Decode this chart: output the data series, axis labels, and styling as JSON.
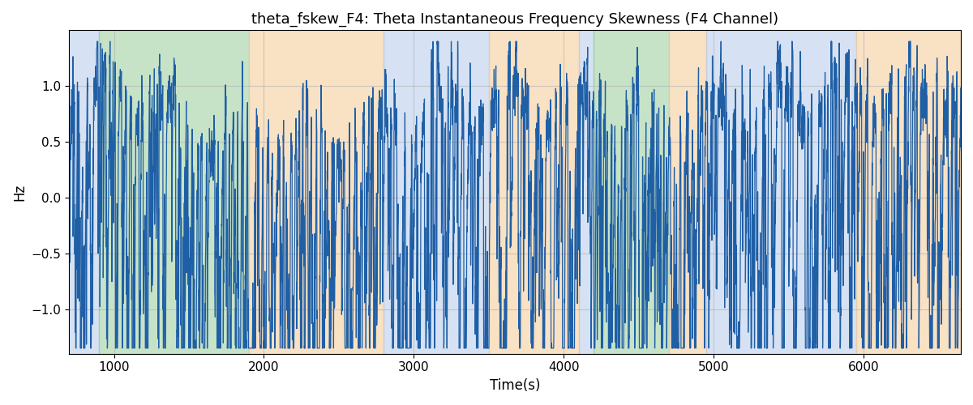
{
  "title": "theta_fskew_F4: Theta Instantaneous Frequency Skewness (F4 Channel)",
  "xlabel": "Time(s)",
  "ylabel": "Hz",
  "xlim": [
    700,
    6650
  ],
  "ylim": [
    -1.4,
    1.5
  ],
  "yticks": [
    -1.0,
    -0.5,
    0.0,
    0.5,
    1.0
  ],
  "xticks": [
    1000,
    2000,
    3000,
    4000,
    5000,
    6000
  ],
  "line_color": "#1f5fa6",
  "line_width": 0.9,
  "bg_regions": [
    {
      "xstart": 700,
      "xend": 900,
      "color": "#aec6e8",
      "alpha": 0.5
    },
    {
      "xstart": 900,
      "xend": 1900,
      "color": "#90c990",
      "alpha": 0.5
    },
    {
      "xstart": 1900,
      "xend": 2800,
      "color": "#f5c995",
      "alpha": 0.55
    },
    {
      "xstart": 2800,
      "xend": 3500,
      "color": "#aec6e8",
      "alpha": 0.5
    },
    {
      "xstart": 3500,
      "xend": 4100,
      "color": "#f5c995",
      "alpha": 0.55
    },
    {
      "xstart": 4100,
      "xend": 4200,
      "color": "#aec6e8",
      "alpha": 0.5
    },
    {
      "xstart": 4200,
      "xend": 4700,
      "color": "#90c990",
      "alpha": 0.5
    },
    {
      "xstart": 4700,
      "xend": 4950,
      "color": "#f5c995",
      "alpha": 0.55
    },
    {
      "xstart": 4950,
      "xend": 5950,
      "color": "#aec6e8",
      "alpha": 0.5
    },
    {
      "xstart": 5950,
      "xend": 6650,
      "color": "#f5c995",
      "alpha": 0.55
    }
  ],
  "title_fontsize": 13,
  "label_fontsize": 12,
  "tick_fontsize": 11,
  "grid_color": "#b0b0b0",
  "grid_alpha": 0.6,
  "grid_linewidth": 0.8,
  "seed": 2024,
  "n_points": 6650,
  "figsize": [
    12.0,
    5.0
  ],
  "dpi": 100
}
